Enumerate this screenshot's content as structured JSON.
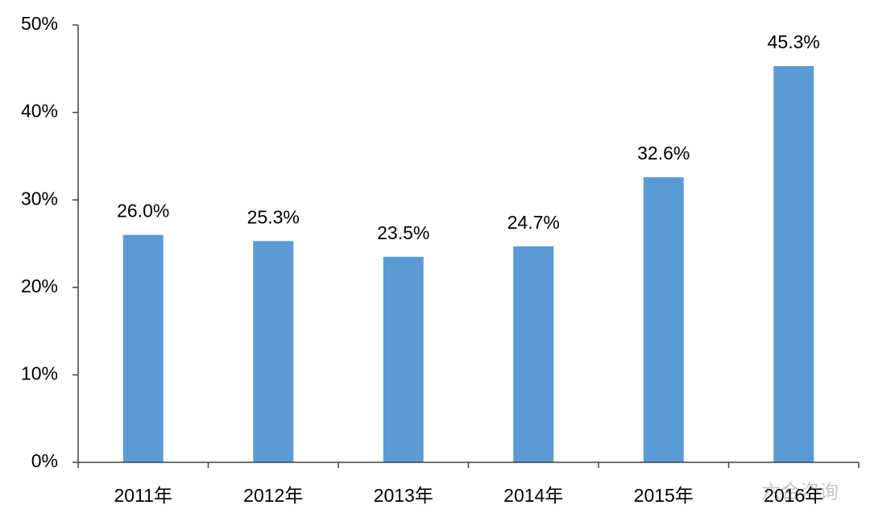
{
  "chart_data": {
    "type": "bar",
    "categories": [
      "2011年",
      "2012年",
      "2013年",
      "2014年",
      "2015年",
      "2016年"
    ],
    "values": [
      26.0,
      25.3,
      23.5,
      24.7,
      32.6,
      45.3
    ],
    "value_labels": [
      "26.0%",
      "25.3%",
      "23.5%",
      "24.7%",
      "32.6%",
      "45.3%"
    ],
    "color": "#5b9bd5",
    "ylim": [
      0,
      50
    ],
    "yticks": [
      {
        "value": 0,
        "label": "0%"
      },
      {
        "value": 10,
        "label": "10%"
      },
      {
        "value": 20,
        "label": "20%"
      },
      {
        "value": 30,
        "label": "30%"
      },
      {
        "value": 40,
        "label": "40%"
      },
      {
        "value": 50,
        "label": "50%"
      }
    ],
    "grid": false,
    "watermark": "六合咨询"
  }
}
